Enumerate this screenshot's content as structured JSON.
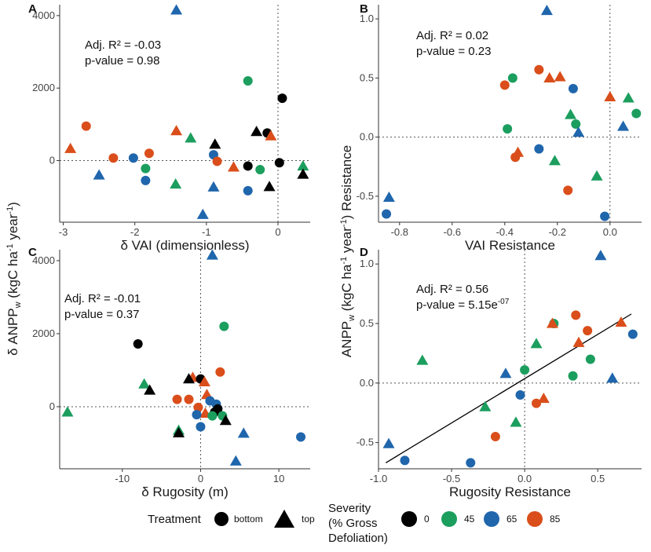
{
  "figure": {
    "shared_ylabel": "δ ANPP",
    "shared_ylabel_sub": "w",
    "shared_ylabel_units": " (kgC ha",
    "shared_ylabel_units2": " year",
    "shared_ylabel_end": ")",
    "shared_ylabel_right_pre": "ANPP",
    "shared_ylabel_right_sub": "w",
    "shared_ylabel_right_units": " (kgC ha",
    "shared_ylabel_right_units2": " year",
    "shared_ylabel_right_end": ") Resistance",
    "exponent": "-1"
  },
  "legend": {
    "treatment_title": "Treatment",
    "treatment_items": [
      {
        "label": "bottom",
        "shape": "circle"
      },
      {
        "label": "top",
        "shape": "triangle"
      }
    ],
    "severity_title_lines": [
      "Severity",
      "(% Gross",
      "Defoliation)"
    ],
    "severity_items": [
      {
        "label": "0",
        "color": "#000000"
      },
      {
        "label": "45",
        "color": "#1b9e5e"
      },
      {
        "label": "65",
        "color": "#1f66ad"
      },
      {
        "label": "85",
        "color": "#d94e1a"
      }
    ]
  },
  "colors": {
    "0": "#000000",
    "45": "#1b9e5e",
    "65": "#1f66ad",
    "85": "#d94e1a"
  },
  "chart_data": [
    {
      "panel": "A",
      "type": "scatter",
      "xlabel": "δ VAI (dimensionless)",
      "xlim": [
        -3.05,
        0.45
      ],
      "ylim": [
        -1700,
        4300
      ],
      "xticks": [
        -3,
        -2,
        -1,
        0
      ],
      "yticks": [
        0,
        2000,
        4000
      ],
      "xref": 0,
      "yref": 0,
      "annotation": [
        "Adj. R² = -0.03",
        "p-value = 0.98"
      ],
      "points": [
        {
          "x": -1.42,
          "y": 4150,
          "shape": "triangle",
          "sev": "65"
        },
        {
          "x": -0.42,
          "y": 2200,
          "shape": "circle",
          "sev": "45"
        },
        {
          "x": 0.06,
          "y": 1720,
          "shape": "circle",
          "sev": "0"
        },
        {
          "x": -2.68,
          "y": 950,
          "shape": "circle",
          "sev": "85"
        },
        {
          "x": -2.9,
          "y": 330,
          "shape": "triangle",
          "sev": "85"
        },
        {
          "x": -2.3,
          "y": 70,
          "shape": "circle",
          "sev": "85"
        },
        {
          "x": -2.02,
          "y": 70,
          "shape": "circle",
          "sev": "65"
        },
        {
          "x": -1.42,
          "y": 820,
          "shape": "triangle",
          "sev": "85"
        },
        {
          "x": -1.22,
          "y": 620,
          "shape": "triangle",
          "sev": "45"
        },
        {
          "x": -1.8,
          "y": 200,
          "shape": "circle",
          "sev": "85"
        },
        {
          "x": -1.85,
          "y": -220,
          "shape": "circle",
          "sev": "45"
        },
        {
          "x": -1.85,
          "y": -550,
          "shape": "circle",
          "sev": "65"
        },
        {
          "x": -2.5,
          "y": -400,
          "shape": "triangle",
          "sev": "65"
        },
        {
          "x": -1.43,
          "y": -650,
          "shape": "triangle",
          "sev": "45"
        },
        {
          "x": -0.88,
          "y": 450,
          "shape": "triangle",
          "sev": "0"
        },
        {
          "x": -0.9,
          "y": 160,
          "shape": "circle",
          "sev": "65"
        },
        {
          "x": -0.85,
          "y": -20,
          "shape": "circle",
          "sev": "85"
        },
        {
          "x": -0.9,
          "y": -730,
          "shape": "triangle",
          "sev": "65"
        },
        {
          "x": -1.05,
          "y": -1490,
          "shape": "triangle",
          "sev": "65"
        },
        {
          "x": -0.62,
          "y": -180,
          "shape": "triangle",
          "sev": "85"
        },
        {
          "x": -0.42,
          "y": -150,
          "shape": "circle",
          "sev": "0"
        },
        {
          "x": -0.42,
          "y": -830,
          "shape": "circle",
          "sev": "65"
        },
        {
          "x": -0.3,
          "y": 800,
          "shape": "triangle",
          "sev": "0"
        },
        {
          "x": -0.15,
          "y": 760,
          "shape": "circle",
          "sev": "0"
        },
        {
          "x": -0.1,
          "y": 680,
          "shape": "triangle",
          "sev": "85"
        },
        {
          "x": -0.25,
          "y": -250,
          "shape": "circle",
          "sev": "45"
        },
        {
          "x": -0.12,
          "y": -720,
          "shape": "triangle",
          "sev": "0"
        },
        {
          "x": 0.02,
          "y": -60,
          "shape": "circle",
          "sev": "0"
        },
        {
          "x": 0.35,
          "y": -150,
          "shape": "triangle",
          "sev": "45"
        },
        {
          "x": 0.35,
          "y": -380,
          "shape": "triangle",
          "sev": "0"
        }
      ]
    },
    {
      "panel": "B",
      "type": "scatter",
      "xlabel": "VAI Resistance",
      "xlim": [
        -0.88,
        0.12
      ],
      "ylim": [
        -0.72,
        1.12
      ],
      "xticks": [
        -0.8,
        -0.6,
        -0.4,
        -0.2,
        0
      ],
      "xtick_labels": [
        "-0.8",
        "-0.6",
        "-0.4",
        "-0.2",
        "0.0"
      ],
      "yticks": [
        -0.5,
        0,
        0.5,
        1
      ],
      "ytick_labels": [
        "-0.5",
        "0.0",
        "0.5",
        "1.0"
      ],
      "xref": 0,
      "yref": 0,
      "annotation": [
        "Adj. R² = 0.02",
        "p-value = 0.23"
      ],
      "points": [
        {
          "x": -0.24,
          "y": 1.07,
          "shape": "triangle",
          "sev": "65"
        },
        {
          "x": -0.27,
          "y": 0.57,
          "shape": "circle",
          "sev": "85"
        },
        {
          "x": -0.37,
          "y": 0.5,
          "shape": "circle",
          "sev": "45"
        },
        {
          "x": -0.4,
          "y": 0.44,
          "shape": "circle",
          "sev": "85"
        },
        {
          "x": -0.23,
          "y": 0.5,
          "shape": "triangle",
          "sev": "85"
        },
        {
          "x": -0.19,
          "y": 0.51,
          "shape": "triangle",
          "sev": "85"
        },
        {
          "x": -0.14,
          "y": 0.41,
          "shape": "circle",
          "sev": "65"
        },
        {
          "x": 0.0,
          "y": 0.34,
          "shape": "triangle",
          "sev": "85"
        },
        {
          "x": 0.07,
          "y": 0.33,
          "shape": "triangle",
          "sev": "45"
        },
        {
          "x": 0.1,
          "y": 0.2,
          "shape": "circle",
          "sev": "45"
        },
        {
          "x": -0.15,
          "y": 0.19,
          "shape": "triangle",
          "sev": "45"
        },
        {
          "x": -0.13,
          "y": 0.11,
          "shape": "circle",
          "sev": "45"
        },
        {
          "x": -0.39,
          "y": 0.07,
          "shape": "circle",
          "sev": "45"
        },
        {
          "x": -0.12,
          "y": 0.04,
          "shape": "triangle",
          "sev": "65"
        },
        {
          "x": 0.05,
          "y": 0.09,
          "shape": "triangle",
          "sev": "65"
        },
        {
          "x": -0.35,
          "y": -0.13,
          "shape": "triangle",
          "sev": "85"
        },
        {
          "x": -0.36,
          "y": -0.17,
          "shape": "circle",
          "sev": "85"
        },
        {
          "x": -0.27,
          "y": -0.1,
          "shape": "circle",
          "sev": "65"
        },
        {
          "x": -0.21,
          "y": -0.2,
          "shape": "triangle",
          "sev": "45"
        },
        {
          "x": -0.05,
          "y": -0.33,
          "shape": "triangle",
          "sev": "45"
        },
        {
          "x": -0.16,
          "y": -0.45,
          "shape": "circle",
          "sev": "85"
        },
        {
          "x": -0.84,
          "y": -0.51,
          "shape": "triangle",
          "sev": "65"
        },
        {
          "x": -0.85,
          "y": -0.65,
          "shape": "circle",
          "sev": "65"
        },
        {
          "x": -0.02,
          "y": -0.67,
          "shape": "circle",
          "sev": "65"
        }
      ]
    },
    {
      "panel": "C",
      "type": "scatter",
      "xlabel": "δ Rugosity (m)",
      "xlim": [
        -18,
        14
      ],
      "ylim": [
        -1700,
        4300
      ],
      "xticks": [
        -10,
        0,
        10
      ],
      "yticks": [
        0,
        2000,
        4000
      ],
      "xref": 0,
      "yref": 0,
      "annotation": [
        "Adj. R² = -0.01",
        "p-value = 0.37"
      ],
      "points": [
        {
          "x": 1.5,
          "y": 4150,
          "shape": "triangle",
          "sev": "65"
        },
        {
          "x": 3.0,
          "y": 2200,
          "shape": "circle",
          "sev": "45"
        },
        {
          "x": -8.0,
          "y": 1720,
          "shape": "circle",
          "sev": "0"
        },
        {
          "x": 2.5,
          "y": 950,
          "shape": "circle",
          "sev": "85"
        },
        {
          "x": -1.0,
          "y": 800,
          "shape": "triangle",
          "sev": "85"
        },
        {
          "x": -1.5,
          "y": 760,
          "shape": "triangle",
          "sev": "0"
        },
        {
          "x": 0.0,
          "y": 760,
          "shape": "circle",
          "sev": "0"
        },
        {
          "x": 0.5,
          "y": 680,
          "shape": "triangle",
          "sev": "85"
        },
        {
          "x": -7.2,
          "y": 620,
          "shape": "triangle",
          "sev": "45"
        },
        {
          "x": -6.5,
          "y": 450,
          "shape": "triangle",
          "sev": "0"
        },
        {
          "x": 0.8,
          "y": 330,
          "shape": "triangle",
          "sev": "85"
        },
        {
          "x": -3.0,
          "y": 200,
          "shape": "circle",
          "sev": "85"
        },
        {
          "x": 1.2,
          "y": 160,
          "shape": "circle",
          "sev": "65"
        },
        {
          "x": 2.0,
          "y": 70,
          "shape": "circle",
          "sev": "65"
        },
        {
          "x": -1.5,
          "y": 200,
          "shape": "circle",
          "sev": "85"
        },
        {
          "x": -0.3,
          "y": -20,
          "shape": "circle",
          "sev": "85"
        },
        {
          "x": 2.2,
          "y": -60,
          "shape": "circle",
          "sev": "0"
        },
        {
          "x": 1.8,
          "y": -150,
          "shape": "circle",
          "sev": "0"
        },
        {
          "x": 0.6,
          "y": -180,
          "shape": "triangle",
          "sev": "85"
        },
        {
          "x": 1.5,
          "y": -250,
          "shape": "circle",
          "sev": "45"
        },
        {
          "x": 2.8,
          "y": -250,
          "shape": "circle",
          "sev": "45"
        },
        {
          "x": 3.2,
          "y": -380,
          "shape": "triangle",
          "sev": "0"
        },
        {
          "x": 0.0,
          "y": -550,
          "shape": "circle",
          "sev": "65"
        },
        {
          "x": -2.8,
          "y": -650,
          "shape": "triangle",
          "sev": "45"
        },
        {
          "x": -2.8,
          "y": -720,
          "shape": "triangle",
          "sev": "0"
        },
        {
          "x": 5.5,
          "y": -730,
          "shape": "triangle",
          "sev": "65"
        },
        {
          "x": 12.8,
          "y": -830,
          "shape": "circle",
          "sev": "65"
        },
        {
          "x": -17.0,
          "y": -150,
          "shape": "triangle",
          "sev": "45"
        },
        {
          "x": 4.5,
          "y": -1490,
          "shape": "triangle",
          "sev": "65"
        },
        {
          "x": -0.5,
          "y": -220,
          "shape": "circle",
          "sev": "65"
        }
      ]
    },
    {
      "panel": "D",
      "type": "scatter",
      "xlabel": "Rugosity Resistance",
      "xlim": [
        -1.0,
        0.8
      ],
      "ylim": [
        -0.72,
        1.12
      ],
      "xticks": [
        -1,
        -0.5,
        0,
        0.5
      ],
      "xtick_labels": [
        "-1.0",
        "-0.5",
        "0.0",
        "0.5"
      ],
      "yticks": [
        -0.5,
        0,
        0.5,
        1
      ],
      "ytick_labels": [
        "-0.5",
        "0.0",
        "0.5",
        "1.0"
      ],
      "xref": 0,
      "yref": 0,
      "annotation": [
        "Adj. R² = 0.56",
        "p-value = 5.15e"
      ],
      "annotation_exp": "-07",
      "fit_line": {
        "x0": -0.95,
        "y0": -0.67,
        "x1": 0.73,
        "y1": 0.58
      },
      "points": [
        {
          "x": 0.52,
          "y": 1.07,
          "shape": "triangle",
          "sev": "65"
        },
        {
          "x": 0.35,
          "y": 0.57,
          "shape": "circle",
          "sev": "85"
        },
        {
          "x": 0.2,
          "y": 0.5,
          "shape": "circle",
          "sev": "45"
        },
        {
          "x": 0.19,
          "y": 0.5,
          "shape": "triangle",
          "sev": "85"
        },
        {
          "x": 0.66,
          "y": 0.51,
          "shape": "triangle",
          "sev": "85"
        },
        {
          "x": 0.43,
          "y": 0.44,
          "shape": "circle",
          "sev": "85"
        },
        {
          "x": 0.74,
          "y": 0.41,
          "shape": "circle",
          "sev": "65"
        },
        {
          "x": 0.37,
          "y": 0.34,
          "shape": "triangle",
          "sev": "85"
        },
        {
          "x": 0.08,
          "y": 0.33,
          "shape": "triangle",
          "sev": "45"
        },
        {
          "x": 0.45,
          "y": 0.2,
          "shape": "circle",
          "sev": "45"
        },
        {
          "x": -0.7,
          "y": 0.19,
          "shape": "triangle",
          "sev": "45"
        },
        {
          "x": 0.0,
          "y": 0.11,
          "shape": "circle",
          "sev": "45"
        },
        {
          "x": -0.13,
          "y": 0.08,
          "shape": "triangle",
          "sev": "65"
        },
        {
          "x": 0.33,
          "y": 0.06,
          "shape": "circle",
          "sev": "45"
        },
        {
          "x": 0.6,
          "y": 0.04,
          "shape": "triangle",
          "sev": "65"
        },
        {
          "x": -0.03,
          "y": -0.1,
          "shape": "circle",
          "sev": "65"
        },
        {
          "x": 0.13,
          "y": -0.13,
          "shape": "triangle",
          "sev": "85"
        },
        {
          "x": 0.08,
          "y": -0.17,
          "shape": "circle",
          "sev": "85"
        },
        {
          "x": -0.27,
          "y": -0.2,
          "shape": "triangle",
          "sev": "45"
        },
        {
          "x": -0.06,
          "y": -0.33,
          "shape": "triangle",
          "sev": "45"
        },
        {
          "x": -0.2,
          "y": -0.45,
          "shape": "circle",
          "sev": "85"
        },
        {
          "x": -0.93,
          "y": -0.51,
          "shape": "triangle",
          "sev": "65"
        },
        {
          "x": -0.82,
          "y": -0.65,
          "shape": "circle",
          "sev": "65"
        },
        {
          "x": -0.37,
          "y": -0.67,
          "shape": "circle",
          "sev": "65"
        }
      ]
    }
  ]
}
